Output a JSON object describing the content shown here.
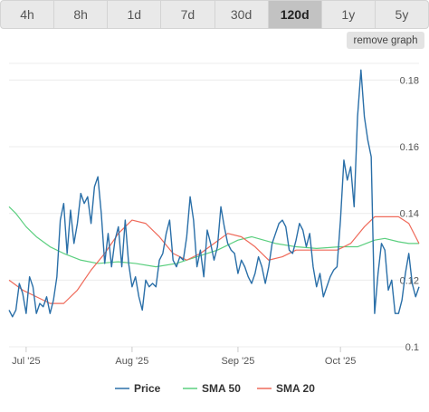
{
  "tabs": [
    {
      "label": "4h",
      "active": false
    },
    {
      "label": "8h",
      "active": false
    },
    {
      "label": "1d",
      "active": false
    },
    {
      "label": "7d",
      "active": false
    },
    {
      "label": "30d",
      "active": false
    },
    {
      "label": "120d",
      "active": true
    },
    {
      "label": "1y",
      "active": false
    },
    {
      "label": "5y",
      "active": false
    }
  ],
  "remove_graph_label": "remove graph",
  "chart_data": {
    "type": "line",
    "ylim": [
      0.1,
      0.185
    ],
    "y_ticks": [
      0.1,
      0.12,
      0.14,
      0.16,
      0.18
    ],
    "y_tick_labels": [
      "0.1",
      "0.12",
      "0.14",
      "0.16",
      "0.18"
    ],
    "grid": true,
    "legend": "bottom",
    "x_range": [
      "2025-06-26",
      "2025-10-24"
    ],
    "x_ticks": [
      {
        "date": "2025-07-01",
        "label": "Jul '25"
      },
      {
        "date": "2025-08-01",
        "label": "Aug '25"
      },
      {
        "date": "2025-09-01",
        "label": "Sep '25"
      },
      {
        "date": "2025-10-01",
        "label": "Oct '25"
      }
    ],
    "series": [
      {
        "name": "Price",
        "color": "#2a6fa8",
        "points": [
          [
            "2025-06-26",
            0.111
          ],
          [
            "2025-06-27",
            0.109
          ],
          [
            "2025-06-28",
            0.111
          ],
          [
            "2025-06-29",
            0.119
          ],
          [
            "2025-06-30",
            0.116
          ],
          [
            "2025-07-01",
            0.11
          ],
          [
            "2025-07-02",
            0.121
          ],
          [
            "2025-07-03",
            0.118
          ],
          [
            "2025-07-04",
            0.11
          ],
          [
            "2025-07-05",
            0.113
          ],
          [
            "2025-07-06",
            0.112
          ],
          [
            "2025-07-07",
            0.115
          ],
          [
            "2025-07-08",
            0.11
          ],
          [
            "2025-07-09",
            0.114
          ],
          [
            "2025-07-10",
            0.121
          ],
          [
            "2025-07-11",
            0.138
          ],
          [
            "2025-07-12",
            0.143
          ],
          [
            "2025-07-13",
            0.128
          ],
          [
            "2025-07-14",
            0.141
          ],
          [
            "2025-07-15",
            0.131
          ],
          [
            "2025-07-16",
            0.137
          ],
          [
            "2025-07-17",
            0.146
          ],
          [
            "2025-07-18",
            0.143
          ],
          [
            "2025-07-19",
            0.145
          ],
          [
            "2025-07-20",
            0.137
          ],
          [
            "2025-07-21",
            0.148
          ],
          [
            "2025-07-22",
            0.151
          ],
          [
            "2025-07-23",
            0.14
          ],
          [
            "2025-07-24",
            0.125
          ],
          [
            "2025-07-25",
            0.134
          ],
          [
            "2025-07-26",
            0.124
          ],
          [
            "2025-07-27",
            0.132
          ],
          [
            "2025-07-28",
            0.136
          ],
          [
            "2025-07-29",
            0.124
          ],
          [
            "2025-07-30",
            0.138
          ],
          [
            "2025-07-31",
            0.125
          ],
          [
            "2025-08-01",
            0.118
          ],
          [
            "2025-08-02",
            0.121
          ],
          [
            "2025-08-03",
            0.115
          ],
          [
            "2025-08-04",
            0.111
          ],
          [
            "2025-08-05",
            0.12
          ],
          [
            "2025-08-06",
            0.118
          ],
          [
            "2025-08-07",
            0.119
          ],
          [
            "2025-08-08",
            0.118
          ],
          [
            "2025-08-09",
            0.126
          ],
          [
            "2025-08-10",
            0.128
          ],
          [
            "2025-08-11",
            0.134
          ],
          [
            "2025-08-12",
            0.138
          ],
          [
            "2025-08-13",
            0.126
          ],
          [
            "2025-08-14",
            0.124
          ],
          [
            "2025-08-15",
            0.127
          ],
          [
            "2025-08-16",
            0.126
          ],
          [
            "2025-08-17",
            0.133
          ],
          [
            "2025-08-18",
            0.145
          ],
          [
            "2025-08-19",
            0.138
          ],
          [
            "2025-08-20",
            0.124
          ],
          [
            "2025-08-21",
            0.129
          ],
          [
            "2025-08-22",
            0.121
          ],
          [
            "2025-08-23",
            0.135
          ],
          [
            "2025-08-24",
            0.131
          ],
          [
            "2025-08-25",
            0.126
          ],
          [
            "2025-08-26",
            0.13
          ],
          [
            "2025-08-27",
            0.142
          ],
          [
            "2025-08-28",
            0.136
          ],
          [
            "2025-08-29",
            0.131
          ],
          [
            "2025-08-30",
            0.129
          ],
          [
            "2025-08-31",
            0.128
          ],
          [
            "2025-09-01",
            0.122
          ],
          [
            "2025-09-02",
            0.126
          ],
          [
            "2025-09-03",
            0.124
          ],
          [
            "2025-09-04",
            0.121
          ],
          [
            "2025-09-05",
            0.119
          ],
          [
            "2025-09-06",
            0.122
          ],
          [
            "2025-09-07",
            0.127
          ],
          [
            "2025-09-08",
            0.124
          ],
          [
            "2025-09-09",
            0.119
          ],
          [
            "2025-09-10",
            0.124
          ],
          [
            "2025-09-11",
            0.131
          ],
          [
            "2025-09-12",
            0.134
          ],
          [
            "2025-09-13",
            0.137
          ],
          [
            "2025-09-14",
            0.138
          ],
          [
            "2025-09-15",
            0.136
          ],
          [
            "2025-09-16",
            0.129
          ],
          [
            "2025-09-17",
            0.128
          ],
          [
            "2025-09-18",
            0.132
          ],
          [
            "2025-09-19",
            0.137
          ],
          [
            "2025-09-20",
            0.135
          ],
          [
            "2025-09-21",
            0.13
          ],
          [
            "2025-09-22",
            0.134
          ],
          [
            "2025-09-23",
            0.124
          ],
          [
            "2025-09-24",
            0.118
          ],
          [
            "2025-09-25",
            0.122
          ],
          [
            "2025-09-26",
            0.115
          ],
          [
            "2025-09-27",
            0.118
          ],
          [
            "2025-09-28",
            0.121
          ],
          [
            "2025-09-29",
            0.123
          ],
          [
            "2025-09-30",
            0.124
          ],
          [
            "2025-10-01",
            0.138
          ],
          [
            "2025-10-02",
            0.156
          ],
          [
            "2025-10-03",
            0.15
          ],
          [
            "2025-10-04",
            0.154
          ],
          [
            "2025-10-05",
            0.142
          ],
          [
            "2025-10-06",
            0.169
          ],
          [
            "2025-10-07",
            0.183
          ],
          [
            "2025-10-08",
            0.169
          ],
          [
            "2025-10-09",
            0.162
          ],
          [
            "2025-10-10",
            0.157
          ],
          [
            "2025-10-11",
            0.11
          ],
          [
            "2025-10-12",
            0.122
          ],
          [
            "2025-10-13",
            0.131
          ],
          [
            "2025-10-14",
            0.129
          ],
          [
            "2025-10-15",
            0.117
          ],
          [
            "2025-10-16",
            0.12
          ],
          [
            "2025-10-17",
            0.11
          ],
          [
            "2025-10-18",
            0.11
          ],
          [
            "2025-10-19",
            0.114
          ],
          [
            "2025-10-20",
            0.122
          ],
          [
            "2025-10-21",
            0.128
          ],
          [
            "2025-10-22",
            0.119
          ],
          [
            "2025-10-23",
            0.115
          ],
          [
            "2025-10-24",
            0.118
          ]
        ]
      },
      {
        "name": "SMA 50",
        "color": "#5bcf7f",
        "points": [
          [
            "2025-06-26",
            0.142
          ],
          [
            "2025-06-28",
            0.14
          ],
          [
            "2025-07-01",
            0.136
          ],
          [
            "2025-07-04",
            0.133
          ],
          [
            "2025-07-08",
            0.13
          ],
          [
            "2025-07-12",
            0.128
          ],
          [
            "2025-07-17",
            0.126
          ],
          [
            "2025-07-22",
            0.125
          ],
          [
            "2025-07-28",
            0.1255
          ],
          [
            "2025-08-02",
            0.125
          ],
          [
            "2025-08-08",
            0.124
          ],
          [
            "2025-08-14",
            0.125
          ],
          [
            "2025-08-20",
            0.127
          ],
          [
            "2025-08-26",
            0.129
          ],
          [
            "2025-09-01",
            0.132
          ],
          [
            "2025-09-05",
            0.133
          ],
          [
            "2025-09-12",
            0.131
          ],
          [
            "2025-09-18",
            0.13
          ],
          [
            "2025-09-24",
            0.1295
          ],
          [
            "2025-10-01",
            0.13
          ],
          [
            "2025-10-06",
            0.13
          ],
          [
            "2025-10-11",
            0.132
          ],
          [
            "2025-10-14",
            0.1325
          ],
          [
            "2025-10-18",
            0.1315
          ],
          [
            "2025-10-21",
            0.131
          ],
          [
            "2025-10-24",
            0.131
          ]
        ]
      },
      {
        "name": "SMA 20",
        "color": "#ef6a5a",
        "points": [
          [
            "2025-06-26",
            0.12
          ],
          [
            "2025-06-30",
            0.117
          ],
          [
            "2025-07-04",
            0.115
          ],
          [
            "2025-07-08",
            0.113
          ],
          [
            "2025-07-12",
            0.113
          ],
          [
            "2025-07-16",
            0.117
          ],
          [
            "2025-07-20",
            0.123
          ],
          [
            "2025-07-24",
            0.128
          ],
          [
            "2025-07-28",
            0.134
          ],
          [
            "2025-08-01",
            0.138
          ],
          [
            "2025-08-05",
            0.137
          ],
          [
            "2025-08-09",
            0.133
          ],
          [
            "2025-08-13",
            0.128
          ],
          [
            "2025-08-17",
            0.126
          ],
          [
            "2025-08-21",
            0.128
          ],
          [
            "2025-08-25",
            0.131
          ],
          [
            "2025-08-29",
            0.134
          ],
          [
            "2025-09-02",
            0.133
          ],
          [
            "2025-09-06",
            0.13
          ],
          [
            "2025-09-10",
            0.126
          ],
          [
            "2025-09-14",
            0.127
          ],
          [
            "2025-09-18",
            0.129
          ],
          [
            "2025-09-22",
            0.129
          ],
          [
            "2025-09-26",
            0.129
          ],
          [
            "2025-09-30",
            0.129
          ],
          [
            "2025-10-04",
            0.131
          ],
          [
            "2025-10-08",
            0.136
          ],
          [
            "2025-10-11",
            0.139
          ],
          [
            "2025-10-15",
            0.139
          ],
          [
            "2025-10-18",
            0.139
          ],
          [
            "2025-10-21",
            0.137
          ],
          [
            "2025-10-24",
            0.131
          ]
        ]
      }
    ]
  }
}
